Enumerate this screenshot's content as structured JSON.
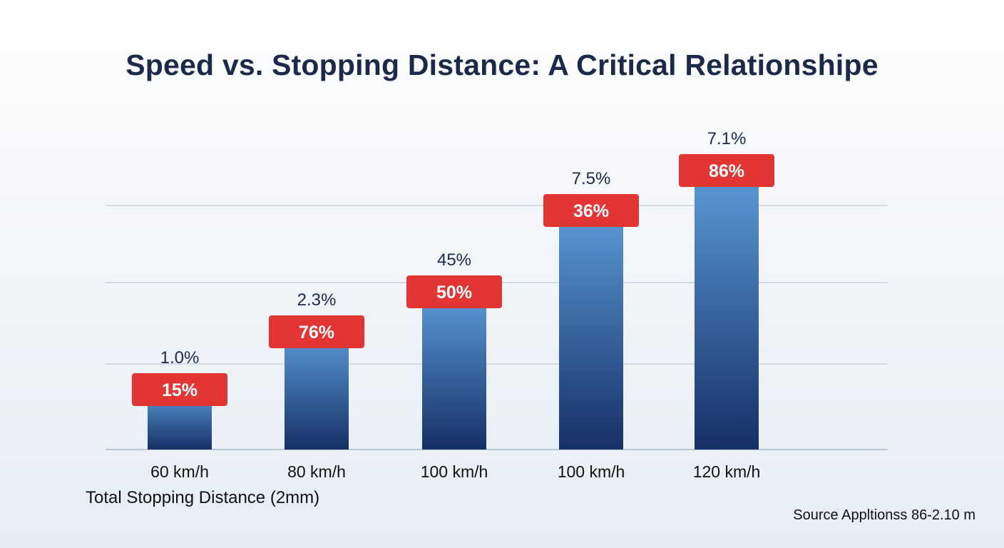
{
  "chart_data": {
    "type": "bar",
    "title": "Speed vs. Stopping Distance: A Critical Relationshipe",
    "xlabel": "Total Stopping Distance (2mm)",
    "ylabel": "",
    "source": "Source Appltionss 86-2.10 m",
    "categories": [
      "60 km/h",
      "80 km/h",
      "100 km/h",
      "100 km/h",
      "120 km/h"
    ],
    "values": [
      84,
      165,
      221,
      335,
      391
    ],
    "badge_labels": [
      "15%",
      "76%",
      "50%",
      "36%",
      "86%"
    ],
    "top_labels": [
      "1.0%",
      "2.3%",
      "45%",
      "7.5%",
      "7.1%"
    ],
    "ylim": [
      0,
      460
    ],
    "grid": true,
    "legend": "none",
    "colors": {
      "bar_light": "#5b9bd8",
      "bar_dark": "#163066",
      "badge": "#e43535",
      "badge_text": "#ffffff",
      "gridline": "#c8d4e3",
      "text": "#1b2a4a"
    }
  }
}
